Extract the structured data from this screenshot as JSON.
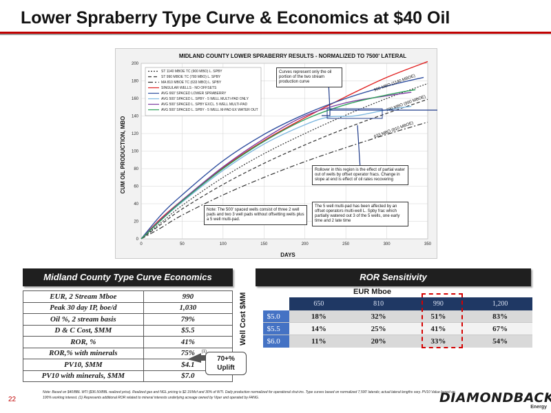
{
  "slide": {
    "title": "Lower Spraberry Type Curve & Economics at $40 Oil",
    "page_number": "22",
    "note": "Note: Based on $40/BBL WTI ($36.50/BBL realized price). Realized gas and NGL pricing is $2.15/Mcf and 30% of WTI. Daily production normalized for operational shut-ins. Type curves based on normalized 7,500' laterals; actual lateral lengths vary. PV10 Value based on 100% working interest. (1) Represents additional ROR related to mineral interests underlying acreage owned by Viper and operated by FANG.",
    "logo_word": "DIAMONDBACK",
    "logo_sub": "Energy"
  },
  "chart_data": {
    "type": "line",
    "title": "MIDLAND COUNTY LOWER SPRABERRY RESULTS - NORMALIZED TO 7500' LATERAL",
    "xlabel": "DAYS",
    "ylabel": "CUM OIL PRODUCTION, MBO",
    "xlim": [
      0,
      350
    ],
    "ylim": [
      0,
      200
    ],
    "xticks": [
      0,
      50,
      100,
      150,
      200,
      250,
      300,
      350
    ],
    "yticks": [
      0,
      20,
      40,
      60,
      80,
      100,
      120,
      140,
      160,
      180,
      200
    ],
    "grid": true,
    "legend_position": "top-left",
    "series": [
      {
        "name": "ST 1140 MBOE TC (900 MBO) L. SPBY",
        "color": "#333333",
        "dash": "2,2",
        "x": [
          0,
          25,
          50,
          100,
          150,
          200,
          250,
          300,
          350
        ],
        "y": [
          0,
          19,
          38,
          70,
          97,
          120,
          141,
          160,
          177
        ]
      },
      {
        "name": "ST 990 MBOE TC (780 MBO) L. SPBY",
        "color": "#333333",
        "dash": "5,3",
        "x": [
          0,
          25,
          50,
          100,
          150,
          200,
          250,
          300,
          350
        ],
        "y": [
          0,
          17,
          34,
          62,
          86,
          107,
          126,
          143,
          159
        ]
      },
      {
        "name": "MA 810 MBOE TC (633 MBO) L. SPBY",
        "color": "#333333",
        "dash": "7,3,2,3",
        "x": [
          0,
          25,
          50,
          100,
          150,
          200,
          250,
          300,
          350
        ],
        "y": [
          0,
          13,
          27,
          50,
          70,
          88,
          104,
          119,
          133
        ]
      },
      {
        "name": "SINGULAR WELLS - NO OFFSETS",
        "color": "#e02020",
        "dash": "",
        "x": [
          0,
          25,
          50,
          100,
          150,
          200,
          250,
          300,
          350
        ],
        "y": [
          0,
          24,
          44,
          81,
          112,
          138,
          162,
          184,
          202
        ]
      },
      {
        "name": "AVG 660' SPACED LOWER SPRABERRY",
        "color": "#2f4fa0",
        "dash": "",
        "x": [
          0,
          25,
          50,
          100,
          150,
          200,
          250,
          300,
          345
        ],
        "y": [
          0,
          28,
          50,
          89,
          119,
          142,
          160,
          174,
          184
        ]
      },
      {
        "name": "AVG 500' SPACED L. SPBY - 5 WELL MULTI-PAD ONLY",
        "color": "#7fb8e0",
        "dash": "",
        "x": [
          0,
          25,
          50,
          100,
          150,
          200,
          230,
          260,
          300,
          330
        ],
        "y": [
          0,
          22,
          42,
          78,
          108,
          130,
          139,
          140,
          147,
          151
        ]
      },
      {
        "name": "AVG 500' SPACED L. SPBY EXCL. 5 WELL MULTI-PAD",
        "color": "#7d3ca0",
        "dash": "",
        "x": [
          0,
          25,
          50,
          100,
          150,
          200,
          250,
          300,
          330
        ],
        "y": [
          0,
          23,
          44,
          82,
          114,
          140,
          155,
          163,
          167
        ]
      },
      {
        "name": "AVG 500' SPACED L. SPBY - 5 WELL M-PAD EX WATER OUT",
        "color": "#2ea05a",
        "dash": "",
        "x": [
          0,
          25,
          50,
          100,
          150,
          200,
          250,
          300,
          335
        ],
        "y": [
          0,
          22,
          43,
          80,
          111,
          136,
          153,
          164,
          170
        ]
      }
    ],
    "curve_labels": [
      {
        "text": "900 MBO (1140 MBOE)",
        "x": 285,
        "y": 168
      },
      {
        "text": "780 MBO (990 MBOE)",
        "x": 300,
        "y": 145
      },
      {
        "text": "633 MBO (810 MBOE)",
        "x": 285,
        "y": 115
      }
    ],
    "callouts": {
      "top": "Curves represent only the oil portion of the two stream production curve",
      "mid": "Rollover in this region is the effect of partial water out of wells by offset operator fracs. Change in slope at end is effect of oil rates recovering",
      "bottom_left": "Note: The 500' spaced wells consist of three 2 well pads and two 3 well pads without offsetting wells plus a 5 well multi-pad.",
      "bottom_right": "The 5 well multi-pad has been affected by an offset operators multi-well L. Spby frac which partially watered out 3 of the 5 wells, one early time and 2 late time"
    }
  },
  "economics": {
    "title": "Midland County Type Curve Economics",
    "rows": [
      {
        "label": "EUR, 2 Stream Mboe",
        "value": "990"
      },
      {
        "label": "Peak 30 day IP, boe/d",
        "value": "1,030"
      },
      {
        "label": "Oil %, 2 stream basis",
        "value": "79%"
      },
      {
        "label": "D & C Cost, $MM",
        "value": "$5.5"
      },
      {
        "label": "ROR, %",
        "value": "41%"
      },
      {
        "label": "ROR,% with minerals",
        "value": "75%"
      },
      {
        "label": "PV10, $MM",
        "value": "$4.1"
      },
      {
        "label": "PV10 with minerals, $MM",
        "value": "$7.0"
      }
    ],
    "footnote_mark": "(1)",
    "uplift_line1": "70+%",
    "uplift_line2": "Uplift"
  },
  "ror": {
    "title": "ROR Sensitivity",
    "eur_heading": "EUR Mboe",
    "well_cost_label": "Well Cost $MM",
    "columns": [
      "650",
      "810",
      "990",
      "1,200"
    ],
    "rows": [
      {
        "cost": "$5.0",
        "values": [
          "18%",
          "32%",
          "51%",
          "83%"
        ]
      },
      {
        "cost": "$5.5",
        "values": [
          "14%",
          "25%",
          "41%",
          "67%"
        ]
      },
      {
        "cost": "$6.0",
        "values": [
          "11%",
          "20%",
          "33%",
          "54%"
        ]
      }
    ],
    "highlight_color": "#d40000"
  }
}
